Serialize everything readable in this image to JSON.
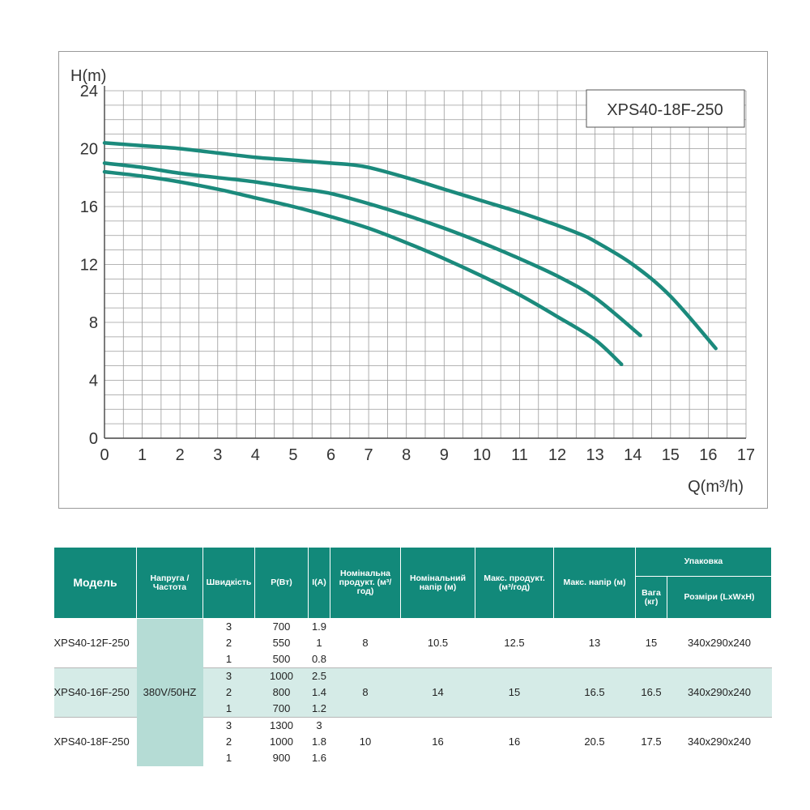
{
  "chart_data": {
    "type": "line",
    "title": "XPS40-18F-250",
    "ylabel": "H(m)",
    "xlabel": "Q(m³/h)",
    "xlim": [
      0,
      17
    ],
    "ylim": [
      0,
      24
    ],
    "x_ticks": [
      "0",
      "1",
      "2",
      "3",
      "4",
      "5",
      "6",
      "7",
      "8",
      "9",
      "10",
      "11",
      "12",
      "13",
      "14",
      "15",
      "16",
      "17"
    ],
    "y_ticks": [
      "0",
      "4",
      "8",
      "12",
      "16",
      "20",
      "24"
    ],
    "grid": true,
    "line_color": "#1b8a7c",
    "series": [
      {
        "points": [
          [
            0,
            20.4
          ],
          [
            1,
            20.2
          ],
          [
            2,
            20.0
          ],
          [
            3,
            19.7
          ],
          [
            4,
            19.4
          ],
          [
            5,
            19.2
          ],
          [
            6,
            19.0
          ],
          [
            6.5,
            18.9
          ],
          [
            7,
            18.7
          ],
          [
            8,
            18.0
          ],
          [
            9,
            17.2
          ],
          [
            10,
            16.4
          ],
          [
            11,
            15.6
          ],
          [
            12,
            14.7
          ],
          [
            12.6,
            14.1
          ],
          [
            13,
            13.6
          ],
          [
            14,
            12.0
          ],
          [
            15,
            9.8
          ],
          [
            16.2,
            6.2
          ]
        ]
      },
      {
        "points": [
          [
            0,
            19.0
          ],
          [
            1,
            18.7
          ],
          [
            2,
            18.3
          ],
          [
            3,
            18.0
          ],
          [
            4,
            17.7
          ],
          [
            5,
            17.3
          ],
          [
            6,
            16.9
          ],
          [
            7,
            16.2
          ],
          [
            8,
            15.4
          ],
          [
            9,
            14.5
          ],
          [
            10,
            13.5
          ],
          [
            11,
            12.4
          ],
          [
            12,
            11.2
          ],
          [
            13,
            9.7
          ],
          [
            14.2,
            7.1
          ]
        ]
      },
      {
        "points": [
          [
            0,
            18.4
          ],
          [
            1,
            18.1
          ],
          [
            2,
            17.7
          ],
          [
            3,
            17.2
          ],
          [
            4,
            16.6
          ],
          [
            5,
            16.0
          ],
          [
            6,
            15.3
          ],
          [
            7,
            14.5
          ],
          [
            8,
            13.5
          ],
          [
            9,
            12.4
          ],
          [
            10,
            11.2
          ],
          [
            11,
            9.9
          ],
          [
            12,
            8.4
          ],
          [
            13,
            6.8
          ],
          [
            13.7,
            5.1
          ]
        ]
      }
    ]
  },
  "table": {
    "headers": {
      "model": "Модель",
      "voltage": "Напруга /Частота",
      "speed": "Швидкість",
      "power": "P(Вт)",
      "current": "I(A)",
      "nominal_flow": "Номінальна продукт. (м³/год)",
      "nominal_head": "Номінальний напір (м)",
      "max_flow": "Макс. продукт. (м³/год)",
      "max_head": "Макс. напір (м)",
      "packaging": "Упаковка",
      "weight": "Вага (кг)",
      "dimensions": "Розміри (LxWxH)"
    },
    "voltage": "380V/50HZ",
    "models": [
      {
        "name": "XPS40-12F-250",
        "nominal_flow": "8",
        "nominal_head": "10.5",
        "max_flow": "12.5",
        "max_head": "13",
        "weight": "15",
        "dimensions": "340x290x240",
        "speeds": [
          {
            "speed": "3",
            "power": "700",
            "current": "1.9"
          },
          {
            "speed": "2",
            "power": "550",
            "current": "1"
          },
          {
            "speed": "1",
            "power": "500",
            "current": "0.8"
          }
        ]
      },
      {
        "name": "XPS40-16F-250",
        "nominal_flow": "8",
        "nominal_head": "14",
        "max_flow": "15",
        "max_head": "16.5",
        "weight": "16.5",
        "dimensions": "340x290x240",
        "speeds": [
          {
            "speed": "3",
            "power": "1000",
            "current": "2.5"
          },
          {
            "speed": "2",
            "power": "800",
            "current": "1.4"
          },
          {
            "speed": "1",
            "power": "700",
            "current": "1.2"
          }
        ]
      },
      {
        "name": "XPS40-18F-250",
        "nominal_flow": "10",
        "nominal_head": "16",
        "max_flow": "16",
        "max_head": "20.5",
        "weight": "17.5",
        "dimensions": "340x290x240",
        "speeds": [
          {
            "speed": "3",
            "power": "1300",
            "current": "3"
          },
          {
            "speed": "2",
            "power": "1000",
            "current": "1.8"
          },
          {
            "speed": "1",
            "power": "900",
            "current": "1.6"
          }
        ]
      }
    ]
  }
}
